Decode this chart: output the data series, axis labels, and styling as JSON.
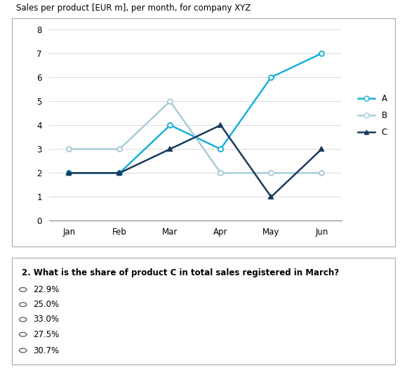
{
  "title": "Sales per product [EUR m], per month, for company XYZ",
  "months": [
    "Jan",
    "Feb",
    "Mar",
    "Apr",
    "May",
    "Jun"
  ],
  "series": {
    "A": [
      2,
      2,
      4,
      3,
      6,
      7
    ],
    "B": [
      3,
      3,
      5,
      2,
      2,
      2
    ],
    "C": [
      2,
      2,
      3,
      4,
      1,
      3
    ]
  },
  "colors": {
    "A": "#1ab0d8",
    "B": "#a8cdd8",
    "C": "#1a3a5c"
  },
  "markers": {
    "A": "o",
    "B": "o",
    "C": "^"
  },
  "ylim": [
    0,
    8
  ],
  "yticks": [
    0,
    1,
    2,
    3,
    4,
    5,
    6,
    7,
    8
  ],
  "question_text": "2. What is the share of product C in total sales registered in March?",
  "options": [
    "22.9%",
    "25.0%",
    "33.0%",
    "27.5%",
    "30.7%"
  ],
  "chart_bg": "#ffffff",
  "title_fontsize": 8.5,
  "axis_fontsize": 8.5,
  "legend_fontsize": 8.5,
  "question_fontsize": 8.5,
  "options_fontsize": 8.5
}
